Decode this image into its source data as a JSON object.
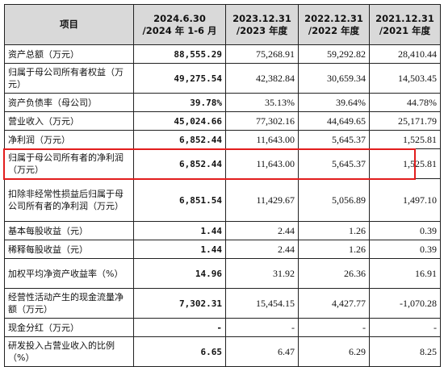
{
  "header": {
    "item": "项目",
    "col1_line1": "2024.6.30",
    "col1_line2": "/2024 年 1-6 月",
    "col2_line1": "2023.12.31",
    "col2_line2": "/2023 年度",
    "col3_line1": "2022.12.31",
    "col3_line2": "/2022 年度",
    "col4_line1": "2021.12.31",
    "col4_line2": "/2021 年度"
  },
  "rows": [
    {
      "label": "资产总额（万元）",
      "v": [
        "88,555.29",
        "75,268.91",
        "59,292.82",
        "28,410.44"
      ]
    },
    {
      "label": "归属于母公司所有者权益（万元）",
      "v": [
        "49,275.54",
        "42,382.84",
        "30,659.34",
        "14,503.45"
      ]
    },
    {
      "label": "资产负债率（母公司）",
      "v": [
        "39.78%",
        "35.13%",
        "39.64%",
        "44.78%"
      ]
    },
    {
      "label": "营业收入（万元）",
      "v": [
        "45,024.66",
        "77,302.16",
        "44,649.65",
        "25,171.79"
      ]
    },
    {
      "label": "净利润（万元）",
      "v": [
        "6,852.44",
        "11,643.00",
        "5,645.37",
        "1,525.81"
      ]
    },
    {
      "label": "归属于母公司所有者的净利润（万元）",
      "v": [
        "6,852.44",
        "11,643.00",
        "5,645.37",
        "1,525.81"
      ]
    },
    {
      "label": "扣除非经常性损益后归属于母公司所有者的净利润（万元）",
      "v": [
        "6,851.54",
        "11,429.67",
        "5,056.89",
        "1,497.10"
      ]
    },
    {
      "label": "基本每股收益（元）",
      "v": [
        "1.44",
        "2.44",
        "1.26",
        "0.39"
      ]
    },
    {
      "label": "稀释每股收益（元）",
      "v": [
        "1.44",
        "2.44",
        "1.26",
        "0.39"
      ]
    },
    {
      "label": "加权平均净资产收益率（%）",
      "v": [
        "14.96",
        "31.92",
        "26.36",
        "16.91"
      ]
    },
    {
      "label": "经营性活动产生的现金流量净额（万元）",
      "v": [
        "7,302.31",
        "15,454.15",
        "4,427.77",
        "-1,070.28"
      ]
    },
    {
      "label": "现金分红（万元）",
      "v": [
        "-",
        "-",
        "-",
        "-"
      ]
    },
    {
      "label": "研发投入占营业收入的比例（%）",
      "v": [
        "6.65",
        "6.47",
        "6.29",
        "8.25"
      ]
    }
  ]
}
